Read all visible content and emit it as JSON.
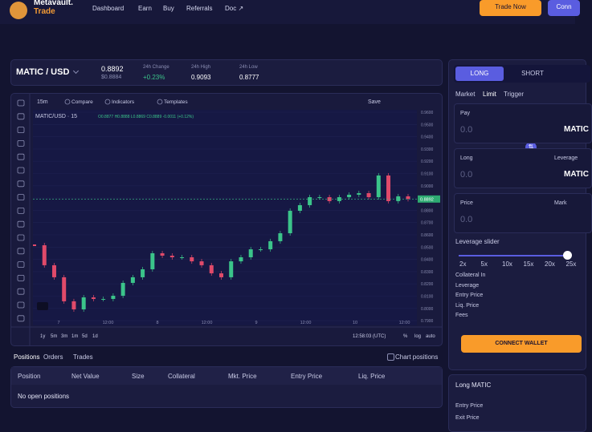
{
  "nav": {
    "brand": "Metavault.",
    "brand_sub": "Trade",
    "links": [
      "Dashboard",
      "Earn",
      "Buy",
      "Referrals",
      "Doc ↗"
    ],
    "trade_button": "Trade Now",
    "connect_button": "Conn"
  },
  "ticker": {
    "pair": "MATIC / USD",
    "price": "0.8892",
    "price_usd": "$0.8884",
    "stats": [
      {
        "label": "24h Change",
        "value": "+0.23%"
      },
      {
        "label": "24h High",
        "value": "0.9093"
      },
      {
        "label": "24h Low",
        "value": "0.8777"
      }
    ]
  },
  "chart": {
    "interval": "15m",
    "toolbar": [
      "Compare",
      "Indicators",
      "Templates"
    ],
    "save": "Save",
    "legend_symbol": "MATIC/USD · 15",
    "legend_ohlc": "O0.8877 H0.8888 L0.8869 C0.8889 -0.0011 (+0.12%)",
    "y_labels": [
      "0.9600",
      "0.9500",
      "0.9400",
      "0.9300",
      "0.9200",
      "0.9100",
      "0.9000",
      "0.8900",
      "0.8800",
      "0.8700",
      "0.8600",
      "0.8500",
      "0.8400",
      "0.8300",
      "0.8200",
      "0.8100",
      "0.8000",
      "0.7900"
    ],
    "x_labels": [
      "7",
      "12:00",
      "8",
      "12:00",
      "9",
      "12:00",
      "10",
      "12:00"
    ],
    "ranges": [
      "1y",
      "5m",
      "3m",
      "1m",
      "5d",
      "1d"
    ],
    "clock": "12:58:03 (UTC)",
    "scale_options": [
      "%",
      "log",
      "auto"
    ],
    "closes": [
      0.8515,
      0.8352,
      0.8254,
      0.8058,
      0.7992,
      0.809,
      0.8077,
      0.8077,
      0.8103,
      0.8208,
      0.8254,
      0.8319,
      0.845,
      0.843,
      0.8417,
      0.8417,
      0.8384,
      0.8352,
      0.8286,
      0.8254,
      0.8384,
      0.8417,
      0.8482,
      0.8482,
      0.8548,
      0.8613,
      0.8796,
      0.8842,
      0.8907,
      0.8907,
      0.8875,
      0.8907,
      0.8927,
      0.894,
      0.8907,
      0.9084,
      0.8875,
      0.8914,
      0.8892
    ]
  },
  "positions": {
    "tabs": [
      "Positions",
      "Orders",
      "Trades"
    ],
    "chart_positions": "Chart positions",
    "columns": [
      "Position",
      "Net Value",
      "Size",
      "Collateral",
      "Mkt. Price",
      "Entry Price",
      "Liq. Price"
    ],
    "empty": "No open positions"
  },
  "trade": {
    "tabs": [
      "LONG",
      "SHORT"
    ],
    "order_types": [
      "Market",
      "Limit",
      "Trigger"
    ],
    "fields": [
      {
        "label": "Pay",
        "value": "0.0",
        "unit": "MATIC"
      },
      {
        "label": "Long",
        "value": "0.0",
        "unit": "MATIC",
        "side": "Leverage"
      },
      {
        "label": "Price",
        "value": "0.0",
        "side": "Mark"
      }
    ],
    "slider_label": "Leverage slider",
    "leverage_marks": [
      "2x",
      "5x",
      "10x",
      "15x",
      "20x",
      "25x"
    ],
    "details": [
      "Collateral In",
      "Leverage",
      "Entry Price",
      "Liq. Price",
      "Fees"
    ],
    "connect": "CONNECT WALLET"
  },
  "summary": {
    "title": "Long MATIC",
    "rows": [
      "Entry Price",
      "Exit Price"
    ]
  }
}
